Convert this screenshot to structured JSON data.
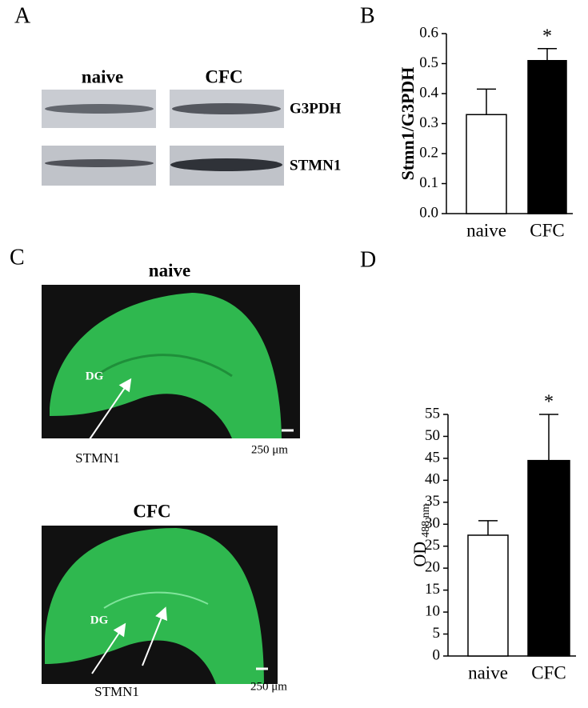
{
  "panel_labels": [
    "A",
    "B",
    "C",
    "D"
  ],
  "blot": {
    "columns": [
      "naive",
      "CFC"
    ],
    "rows": [
      "G3PDH",
      "STMN1"
    ]
  },
  "micrographs": [
    {
      "title": "naive",
      "region": "DG",
      "marker": "STMN1",
      "scale": "250 μm"
    },
    {
      "title": "CFC",
      "region": "DG",
      "marker": "STMN1",
      "scale": "250 μm"
    }
  ],
  "chart_data": [
    {
      "type": "bar",
      "ylabel": "Stmn1/G3PDH",
      "categories": [
        "naive",
        "CFC"
      ],
      "values": [
        0.33,
        0.51
      ],
      "errors": [
        0.085,
        0.04
      ],
      "colors": [
        "#ffffff",
        "#000000"
      ],
      "ylim": [
        0,
        0.6
      ],
      "yticks": [
        {
          "value": 0,
          "label": "0.0"
        },
        0.1,
        0.2,
        0.3,
        0.4,
        0.5,
        0.6
      ],
      "annotation": "*"
    },
    {
      "type": "bar",
      "ylabel": "OD",
      "ylabel_subscript": "488 nm",
      "categories": [
        "naive",
        "CFC"
      ],
      "values": [
        27.5,
        44.5
      ],
      "errors": [
        3.3,
        10.5
      ],
      "colors": [
        "#ffffff",
        "#000000"
      ],
      "ylim": [
        0,
        55
      ],
      "yticks": [
        0,
        5,
        10,
        15,
        20,
        25,
        30,
        35,
        40,
        45,
        50,
        55
      ],
      "annotation": "*"
    }
  ]
}
